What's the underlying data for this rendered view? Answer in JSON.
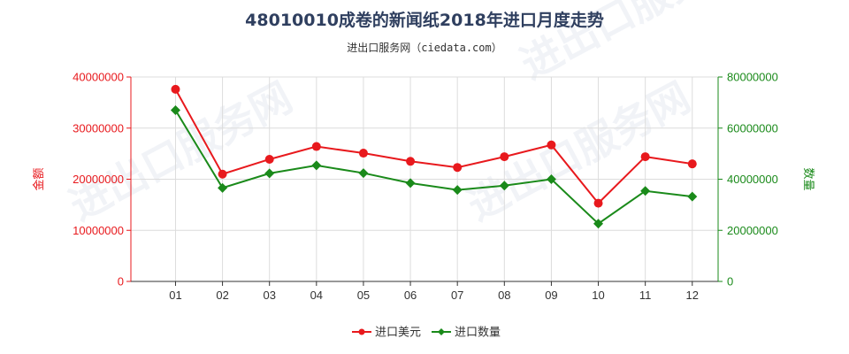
{
  "chart_data": {
    "type": "line",
    "title": "48010010成卷的新闻纸2018年进口月度走势",
    "subtitle": "进出口服务网（ciedata.com）",
    "watermark": "进出口服务网",
    "categories": [
      "01",
      "02",
      "03",
      "04",
      "05",
      "06",
      "07",
      "08",
      "09",
      "10",
      "11",
      "12"
    ],
    "y_left": {
      "label": "金额",
      "ticks": [
        "0",
        "10000000",
        "20000000",
        "30000000",
        "40000000"
      ],
      "range": [
        0,
        40000000
      ],
      "color": "#e8191d"
    },
    "y_right": {
      "label": "数量",
      "ticks": [
        "0",
        "20000000",
        "40000000",
        "60000000",
        "80000000"
      ],
      "range": [
        0,
        80000000
      ],
      "color": "#1a8a1a"
    },
    "series": [
      {
        "name": "进口美元",
        "axis": "left",
        "color": "#e8191d",
        "marker": "circle",
        "values": [
          37600000,
          21000000,
          23900000,
          26400000,
          25100000,
          23500000,
          22300000,
          24400000,
          26700000,
          15300000,
          24400000,
          23000000
        ]
      },
      {
        "name": "进口数量",
        "axis": "right",
        "color": "#1a8a1a",
        "marker": "diamond",
        "values": [
          67000000,
          36600000,
          42300000,
          45400000,
          42400000,
          38500000,
          35800000,
          37500000,
          40000000,
          22600000,
          35400000,
          33200000
        ]
      }
    ],
    "grid": true,
    "legend": "bottom-center"
  }
}
